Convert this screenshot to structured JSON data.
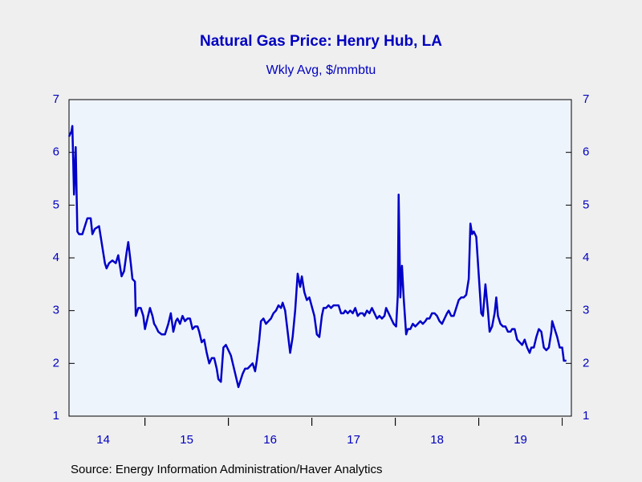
{
  "chart_data": {
    "type": "line",
    "title": "Natural Gas Price: Henry Hub, LA",
    "subtitle": "Wkly Avg, $/mmbtu",
    "source": "Source:  Energy Information Administration/Haver Analytics",
    "color": "#0000c8",
    "x": [
      2014.09,
      2014.12,
      2014.13,
      2014.15,
      2014.17,
      2014.19,
      2014.21,
      2014.25,
      2014.28,
      2014.31,
      2014.35,
      2014.37,
      2014.4,
      2014.45,
      2014.47,
      2014.5,
      2014.52,
      2014.54,
      2014.57,
      2014.61,
      2014.65,
      2014.68,
      2014.7,
      2014.72,
      2014.75,
      2014.78,
      2014.8,
      2014.83,
      2014.85,
      2014.88,
      2014.89,
      2014.92,
      2014.95,
      2014.98,
      2015.0,
      2015.03,
      2015.06,
      2015.09,
      2015.11,
      2015.13,
      2015.16,
      2015.2,
      2015.24,
      2015.28,
      2015.31,
      2015.34,
      2015.37,
      2015.39,
      2015.42,
      2015.45,
      2015.48,
      2015.51,
      2015.54,
      2015.57,
      2015.6,
      2015.63,
      2015.65,
      2015.68,
      2015.71,
      2015.74,
      2015.77,
      2015.8,
      2015.83,
      2015.86,
      2015.88,
      2015.91,
      2015.94,
      2015.97,
      2016.03,
      2016.06,
      2016.09,
      2016.12,
      2016.14,
      2016.17,
      2016.2,
      2016.23,
      2016.26,
      2016.29,
      2016.32,
      2016.34,
      2016.37,
      2016.39,
      2016.42,
      2016.45,
      2016.48,
      2016.51,
      2016.54,
      2016.57,
      2016.6,
      2016.63,
      2016.65,
      2016.68,
      2016.71,
      2016.74,
      2016.77,
      2016.8,
      2016.83,
      2016.86,
      2016.88,
      2016.91,
      2016.94,
      2016.97,
      2017.03,
      2017.06,
      2017.09,
      2017.12,
      2017.14,
      2017.17,
      2017.2,
      2017.23,
      2017.26,
      2017.29,
      2017.32,
      2017.35,
      2017.38,
      2017.4,
      2017.43,
      2017.46,
      2017.49,
      2017.52,
      2017.55,
      2017.58,
      2017.61,
      2017.63,
      2017.66,
      2017.69,
      2017.72,
      2017.75,
      2017.78,
      2017.81,
      2017.84,
      2017.87,
      2017.89,
      2017.92,
      2017.95,
      2017.98,
      2018.01,
      2018.03,
      2018.04,
      2018.06,
      2018.08,
      2018.1,
      2018.13,
      2018.15,
      2018.18,
      2018.21,
      2018.24,
      2018.27,
      2018.3,
      2018.33,
      2018.36,
      2018.38,
      2018.41,
      2018.44,
      2018.47,
      2018.5,
      2018.53,
      2018.56,
      2018.59,
      2018.62,
      2018.64,
      2018.67,
      2018.7,
      2018.73,
      2018.76,
      2018.79,
      2018.82,
      2018.85,
      2018.88,
      2018.9,
      2018.92,
      2018.94,
      2018.97,
      2019.03,
      2019.05,
      2019.08,
      2019.11,
      2019.13,
      2019.16,
      2019.19,
      2019.21,
      2019.23,
      2019.26,
      2019.29,
      2019.32,
      2019.35,
      2019.38,
      2019.4,
      2019.43,
      2019.46,
      2019.49,
      2019.52,
      2019.55,
      2019.58,
      2019.61,
      2019.63,
      2019.66,
      2019.69,
      2019.72,
      2019.75,
      2019.78,
      2019.81,
      2019.84,
      2019.87,
      2019.88,
      2019.91,
      2019.94,
      2019.97,
      2020.0,
      2020.02,
      2020.05
    ],
    "values": [
      6.3,
      6.4,
      6.5,
      5.2,
      6.1,
      4.5,
      4.45,
      4.45,
      4.6,
      4.75,
      4.75,
      4.45,
      4.55,
      4.6,
      4.4,
      4.1,
      3.9,
      3.8,
      3.9,
      3.95,
      3.9,
      4.05,
      3.85,
      3.65,
      3.75,
      4.1,
      4.3,
      3.9,
      3.6,
      3.55,
      2.9,
      3.05,
      3.05,
      2.9,
      2.65,
      2.85,
      3.05,
      2.9,
      2.75,
      2.7,
      2.6,
      2.55,
      2.55,
      2.75,
      2.95,
      2.6,
      2.8,
      2.85,
      2.75,
      2.9,
      2.8,
      2.85,
      2.85,
      2.65,
      2.7,
      2.7,
      2.6,
      2.4,
      2.45,
      2.2,
      2.0,
      2.1,
      2.1,
      1.9,
      1.7,
      1.65,
      2.3,
      2.35,
      2.15,
      1.95,
      1.75,
      1.55,
      1.65,
      1.8,
      1.9,
      1.9,
      1.95,
      2.0,
      1.85,
      2.05,
      2.45,
      2.8,
      2.85,
      2.75,
      2.8,
      2.85,
      2.95,
      3.0,
      3.1,
      3.05,
      3.15,
      3.0,
      2.6,
      2.2,
      2.5,
      3.0,
      3.7,
      3.45,
      3.65,
      3.35,
      3.2,
      3.25,
      2.9,
      2.55,
      2.5,
      2.9,
      3.05,
      3.05,
      3.1,
      3.05,
      3.1,
      3.1,
      3.1,
      2.95,
      2.95,
      3.0,
      2.95,
      3.0,
      2.95,
      3.05,
      2.9,
      2.95,
      2.95,
      2.9,
      3.0,
      2.95,
      3.05,
      2.95,
      2.85,
      2.9,
      2.85,
      2.9,
      3.05,
      2.95,
      2.85,
      2.75,
      2.7,
      3.3,
      5.2,
      3.25,
      3.85,
      3.25,
      2.55,
      2.65,
      2.65,
      2.75,
      2.7,
      2.75,
      2.8,
      2.75,
      2.8,
      2.85,
      2.85,
      2.95,
      2.95,
      2.9,
      2.8,
      2.75,
      2.85,
      2.95,
      3.0,
      2.9,
      2.9,
      3.05,
      3.2,
      3.25,
      3.25,
      3.3,
      3.6,
      4.65,
      4.45,
      4.5,
      4.4,
      2.95,
      2.9,
      3.5,
      3.0,
      2.6,
      2.7,
      2.95,
      3.25,
      2.9,
      2.75,
      2.7,
      2.7,
      2.6,
      2.6,
      2.65,
      2.65,
      2.45,
      2.4,
      2.35,
      2.45,
      2.3,
      2.2,
      2.3,
      2.3,
      2.5,
      2.65,
      2.6,
      2.3,
      2.25,
      2.3,
      2.6,
      2.8,
      2.65,
      2.5,
      2.3,
      2.3,
      2.05,
      2.05
    ],
    "xlim": [
      2014.09,
      2020.11
    ],
    "xticks": [
      {
        "value": 2014.5,
        "label": "14"
      },
      {
        "value": 2015.5,
        "label": "15"
      },
      {
        "value": 2016.5,
        "label": "16"
      },
      {
        "value": 2017.5,
        "label": "17"
      },
      {
        "value": 2018.5,
        "label": "18"
      },
      {
        "value": 2019.5,
        "label": "19"
      }
    ],
    "ylim": [
      1,
      7
    ],
    "yticks": [
      1,
      2,
      3,
      4,
      5,
      6,
      7
    ]
  }
}
